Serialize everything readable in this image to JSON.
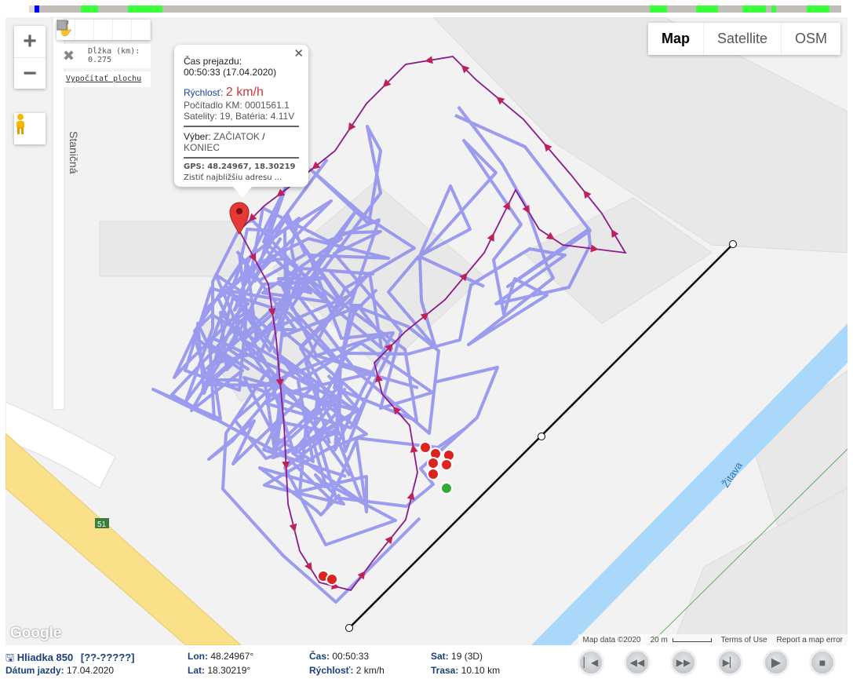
{
  "timeline": {
    "segments": [
      {
        "from": 0,
        "to": 7,
        "color": "#dddbd6"
      },
      {
        "from": 66,
        "to": 88,
        "color": "#3bff3b"
      },
      {
        "from": 7,
        "to": 13,
        "color": "#0000ff"
      },
      {
        "from": 126,
        "to": 170,
        "color": "#3bff3b"
      },
      {
        "from": 791,
        "to": 813,
        "color": "#3bff3b"
      },
      {
        "from": 850,
        "to": 878,
        "color": "#3bff3b"
      },
      {
        "from": 909,
        "to": 939,
        "color": "#3bff3b"
      },
      {
        "from": 946,
        "to": 952,
        "color": "#3bff3b"
      },
      {
        "from": 991,
        "to": 1020,
        "color": "#3bff3b"
      }
    ]
  },
  "map": {
    "zoom_in": "+",
    "zoom_out": "−",
    "tools": [
      "hand-icon",
      "polyline-icon",
      "circle-icon",
      "polygon-icon",
      "rectangle-icon"
    ],
    "measure": {
      "label": "Dĺžka (km):",
      "value": "0.275",
      "calc_link": "Vypočítať plochu"
    },
    "map_types": [
      "Map",
      "Satellite",
      "OSM"
    ],
    "active_map_type": "Map",
    "labels": {
      "street": "Staničná",
      "river": "Žitava",
      "road_number": "51"
    },
    "attribution": {
      "map_data": "Map data ©2020",
      "scale": "20 m",
      "terms": "Terms of Use",
      "report": "Report a map error",
      "logo": "Google"
    },
    "colors": {
      "track": "#8c8cf0",
      "selected_track": "#8b1a8b",
      "river": "#a9d8fb",
      "highway": "#fbe08a"
    }
  },
  "popup": {
    "title": "Čas prejazdu:",
    "time": "00:50:33 (17.04.2020)",
    "speed_label": "Rýchlosť:",
    "speed_value": "2 km/h",
    "odometer": "Počítadlo KM: 0001561.1",
    "sat_battery": "Satelity: 19, Batéria: 4.11V",
    "selection_label": "Výber:",
    "selection_start": "ZAČIATOK",
    "selection_sep": "/",
    "selection_end": "KONIEC",
    "gps": "GPS: 48.24967, 18.30219",
    "address_link": "Zistiť najbližšiu adresu ..."
  },
  "status": {
    "vehicle": "Hliadka 850",
    "plate": "[??-?????]",
    "date_label": "Dátum jazdy:",
    "date": "17.04.2020",
    "lon_label": "Lon:",
    "lon": "48.24967°",
    "lat_label": "Lat:",
    "lat": "18.30219°",
    "time_label": "Čas:",
    "time": "00:50:33",
    "speed_label": "Rýchlosť:",
    "speed": "2 km/h",
    "sat_label": "Sat:",
    "sat": "19 (3D)",
    "route_label": "Trasa:",
    "route": "10.10 km"
  },
  "player": [
    "skip-start-icon",
    "rewind-icon",
    "fast-forward-icon",
    "skip-end-icon",
    "play-icon",
    "stop-icon"
  ]
}
